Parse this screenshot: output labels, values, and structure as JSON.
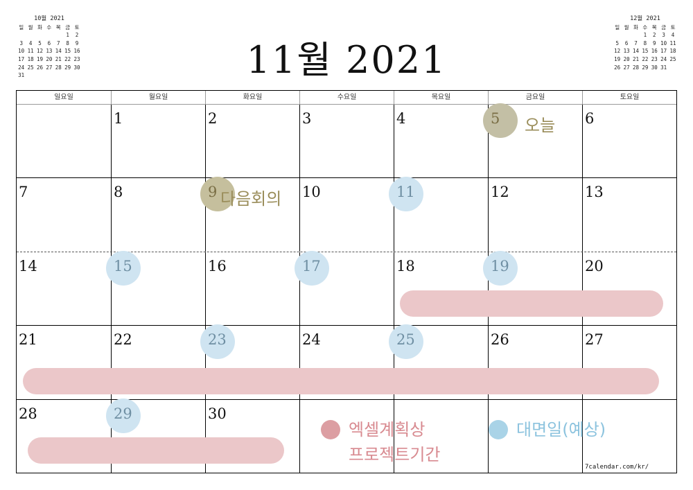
{
  "title": "11월 2021",
  "mini_prev": {
    "title": "10월 2021",
    "weekdays": [
      "일",
      "월",
      "화",
      "수",
      "목",
      "금",
      "토"
    ],
    "rows": [
      [
        "",
        "",
        "",
        "",
        "",
        "1",
        "2"
      ],
      [
        "3",
        "4",
        "5",
        "6",
        "7",
        "8",
        "9"
      ],
      [
        "10",
        "11",
        "12",
        "13",
        "14",
        "15",
        "16"
      ],
      [
        "17",
        "18",
        "19",
        "20",
        "21",
        "22",
        "23"
      ],
      [
        "24",
        "25",
        "26",
        "27",
        "28",
        "29",
        "30"
      ],
      [
        "31",
        "",
        "",
        "",
        "",
        "",
        ""
      ]
    ]
  },
  "mini_next": {
    "title": "12월 2021",
    "weekdays": [
      "일",
      "월",
      "화",
      "수",
      "목",
      "금",
      "토"
    ],
    "rows": [
      [
        "",
        "",
        "",
        "1",
        "2",
        "3",
        "4"
      ],
      [
        "5",
        "6",
        "7",
        "8",
        "9",
        "10",
        "11"
      ],
      [
        "12",
        "13",
        "14",
        "15",
        "16",
        "17",
        "18"
      ],
      [
        "19",
        "20",
        "21",
        "22",
        "23",
        "24",
        "25"
      ],
      [
        "26",
        "27",
        "28",
        "29",
        "30",
        "31",
        ""
      ]
    ]
  },
  "weekday_headers": [
    "일요일",
    "월요일",
    "화요일",
    "수요일",
    "목요일",
    "금요일",
    "토요일"
  ],
  "weeks": [
    [
      "",
      "1",
      "2",
      "3",
      "4",
      "5",
      "6"
    ],
    [
      "7",
      "8",
      "9",
      "10",
      "11",
      "12",
      "13"
    ],
    [
      "14",
      "15",
      "16",
      "17",
      "18",
      "19",
      "20"
    ],
    [
      "21",
      "22",
      "23",
      "24",
      "25",
      "26",
      "27"
    ],
    [
      "28",
      "29",
      "30",
      "",
      "",
      "",
      ""
    ]
  ],
  "today_label": "오늘",
  "meeting_label": "다음회의",
  "legend": {
    "project": {
      "line1": "엑셀계획상",
      "line2": "프로젝트기간",
      "color": "#dc9ea2"
    },
    "visit": {
      "label": "대면일(예상)",
      "color": "#a9d3e7"
    }
  },
  "colors": {
    "bar": "#ebc7c9",
    "blue_dot": "#cfe4f1",
    "today_dot": "#c3bfa5"
  },
  "credit": "7calendar.com/kr/"
}
